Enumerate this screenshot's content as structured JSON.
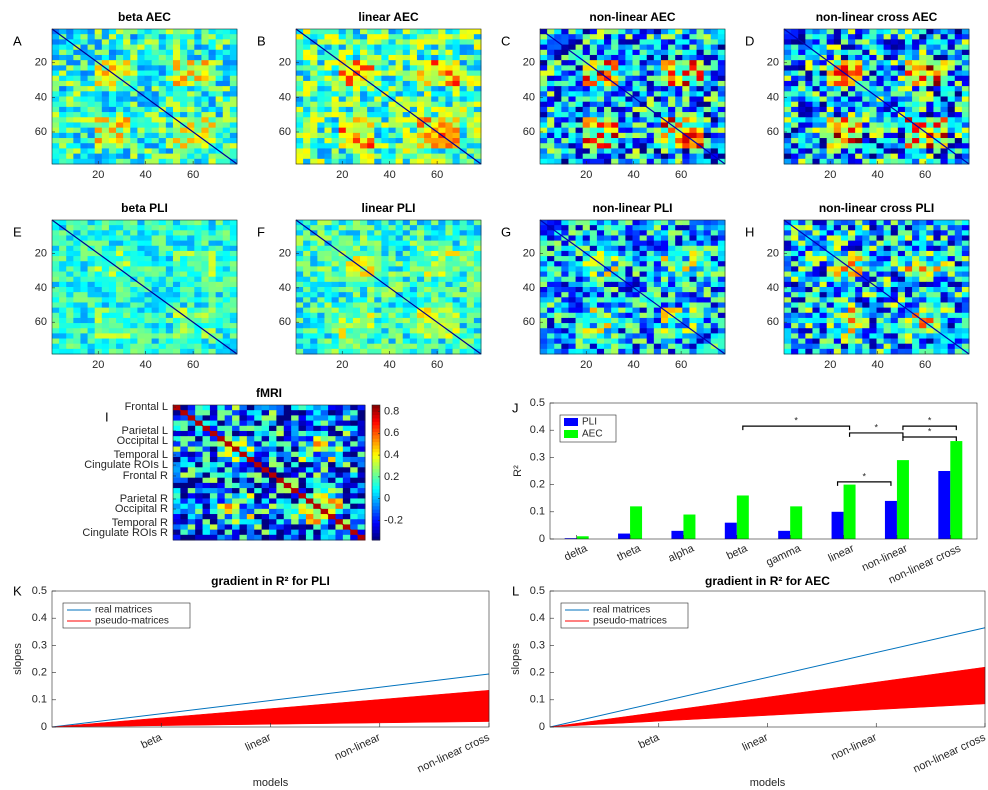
{
  "chart_data": [
    {
      "type": "heatmap",
      "label": "A",
      "title": "beta AEC",
      "xlim": [
        0.5,
        78.5
      ],
      "ylim": [
        0.5,
        78.5
      ],
      "xticks": [
        20,
        40,
        60
      ],
      "yticks": [
        20,
        40,
        60
      ]
    },
    {
      "type": "heatmap",
      "label": "B",
      "title": "linear AEC",
      "xlim": [
        0.5,
        78.5
      ],
      "ylim": [
        0.5,
        78.5
      ],
      "xticks": [
        20,
        40,
        60
      ],
      "yticks": [
        20,
        40,
        60
      ]
    },
    {
      "type": "heatmap",
      "label": "C",
      "title": "non-linear AEC",
      "xlim": [
        0.5,
        78.5
      ],
      "ylim": [
        0.5,
        78.5
      ],
      "xticks": [
        20,
        40,
        60
      ],
      "yticks": [
        20,
        40,
        60
      ]
    },
    {
      "type": "heatmap",
      "label": "D",
      "title": "non-linear cross AEC",
      "xlim": [
        0.5,
        78.5
      ],
      "ylim": [
        0.5,
        78.5
      ],
      "xticks": [
        20,
        40,
        60
      ],
      "yticks": [
        20,
        40,
        60
      ]
    },
    {
      "type": "heatmap",
      "label": "E",
      "title": "beta PLI",
      "xlim": [
        0.5,
        78.5
      ],
      "ylim": [
        0.5,
        78.5
      ],
      "xticks": [
        20,
        40,
        60
      ],
      "yticks": [
        20,
        40,
        60
      ]
    },
    {
      "type": "heatmap",
      "label": "F",
      "title": "linear PLI",
      "xlim": [
        0.5,
        78.5
      ],
      "ylim": [
        0.5,
        78.5
      ],
      "xticks": [
        20,
        40,
        60
      ],
      "yticks": [
        20,
        40,
        60
      ]
    },
    {
      "type": "heatmap",
      "label": "G",
      "title": "non-linear PLI",
      "xlim": [
        0.5,
        78.5
      ],
      "ylim": [
        0.5,
        78.5
      ],
      "xticks": [
        20,
        40,
        60
      ],
      "yticks": [
        20,
        40,
        60
      ]
    },
    {
      "type": "heatmap",
      "label": "H",
      "title": "non-linear cross PLI",
      "xlim": [
        0.5,
        78.5
      ],
      "ylim": [
        0.5,
        78.5
      ],
      "xticks": [
        20,
        40,
        60
      ],
      "yticks": [
        20,
        40,
        60
      ]
    },
    {
      "type": "heatmap",
      "label": "I",
      "title": "fMRI",
      "xlim": [
        0.5,
        78.5
      ],
      "ylim": [
        0.5,
        78.5
      ],
      "xticks": [],
      "yticks": [
        {
          "value": 1.7,
          "label": "Frontal L"
        },
        {
          "value": 15.5,
          "label": "Parietal L"
        },
        {
          "value": 21.3,
          "label": "Occipital L"
        },
        {
          "value": 29.4,
          "label": "Temporal L"
        },
        {
          "value": 35.2,
          "label": "Cingulate ROIs L"
        },
        {
          "value": 41.5,
          "label": "Frontal R"
        },
        {
          "value": 54.8,
          "label": "Parietal R"
        },
        {
          "value": 60.6,
          "label": "Occipital R"
        },
        {
          "value": 68.7,
          "label": "Temporal R"
        },
        {
          "value": 74.5,
          "label": "Cingulate ROIs R"
        }
      ],
      "clim": [
        -0.38,
        0.86
      ],
      "colorbar_ticks": [
        -0.2,
        0,
        0.2,
        0.4,
        0.6,
        0.8
      ]
    },
    {
      "type": "bar",
      "label": "J",
      "ylabel": "R²",
      "categories": [
        "delta",
        "theta",
        "alpha",
        "beta",
        "gamma",
        "linear",
        "non-linear",
        "non-linear cross"
      ],
      "series": [
        {
          "name": "PLI",
          "color": "#0000ff",
          "values": [
            0.003,
            0.02,
            0.03,
            0.06,
            0.03,
            0.1,
            0.14,
            0.25
          ]
        },
        {
          "name": "AEC",
          "color": "#00ff00",
          "values": [
            0.01,
            0.12,
            0.09,
            0.16,
            0.12,
            0.2,
            0.29,
            0.36
          ]
        }
      ],
      "ylim": [
        0,
        0.5
      ],
      "yticks": [
        0,
        0.1,
        0.2,
        0.3,
        0.4,
        0.5
      ],
      "legend": "upper-left",
      "significance": [
        {
          "from": [
            3,
            1
          ],
          "to": [
            5,
            1
          ],
          "y": 0.415,
          "label": "*"
        },
        {
          "from": [
            5,
            1
          ],
          "to": [
            6,
            1
          ],
          "y": 0.39,
          "label": "*"
        },
        {
          "from": [
            6,
            1
          ],
          "to": [
            7,
            1
          ],
          "y": 0.415,
          "label": "*"
        },
        {
          "from": [
            6,
            1
          ],
          "to": [
            7,
            1
          ],
          "y": 0.375,
          "label": "*"
        },
        {
          "from": [
            5,
            0
          ],
          "to": [
            6,
            0
          ],
          "y": 0.21,
          "label": "*"
        }
      ]
    },
    {
      "type": "line",
      "label": "K",
      "title": "gradient in R² for PLI",
      "xlabel": "models",
      "ylabel": "slopes",
      "x": [
        0,
        4
      ],
      "xlim": [
        0,
        4
      ],
      "xticks": [
        {
          "value": 1,
          "label": "beta"
        },
        {
          "value": 2,
          "label": "linear"
        },
        {
          "value": 3,
          "label": "non-linear"
        },
        {
          "value": 4,
          "label": "non-linear cross"
        }
      ],
      "ylim": [
        0,
        0.5
      ],
      "yticks": [
        0,
        0.1,
        0.2,
        0.3,
        0.4,
        0.5
      ],
      "legend": "upper-left",
      "series": [
        {
          "name": "real matrices",
          "color": "#0072bd",
          "values": [
            0,
            0.195
          ]
        },
        {
          "name": "pseudo-matrices",
          "color": "#ff0000",
          "values": [
            0,
            0.135
          ],
          "lower": [
            0,
            0.02
          ]
        }
      ]
    },
    {
      "type": "line",
      "label": "L",
      "title": "gradient in R² for AEC",
      "xlabel": "models",
      "ylabel": "slopes",
      "x": [
        0,
        4
      ],
      "xlim": [
        0,
        4
      ],
      "xticks": [
        {
          "value": 1,
          "label": "beta"
        },
        {
          "value": 2,
          "label": "linear"
        },
        {
          "value": 3,
          "label": "non-linear"
        },
        {
          "value": 4,
          "label": "non-linear cross"
        }
      ],
      "ylim": [
        0,
        0.5
      ],
      "yticks": [
        0,
        0.1,
        0.2,
        0.3,
        0.4,
        0.5
      ],
      "legend": "upper-left",
      "series": [
        {
          "name": "real matrices",
          "color": "#0072bd",
          "values": [
            0,
            0.365
          ]
        },
        {
          "name": "pseudo-matrices",
          "color": "#ff0000",
          "values": [
            0,
            0.22
          ],
          "lower": [
            0,
            0.085
          ]
        }
      ]
    }
  ]
}
